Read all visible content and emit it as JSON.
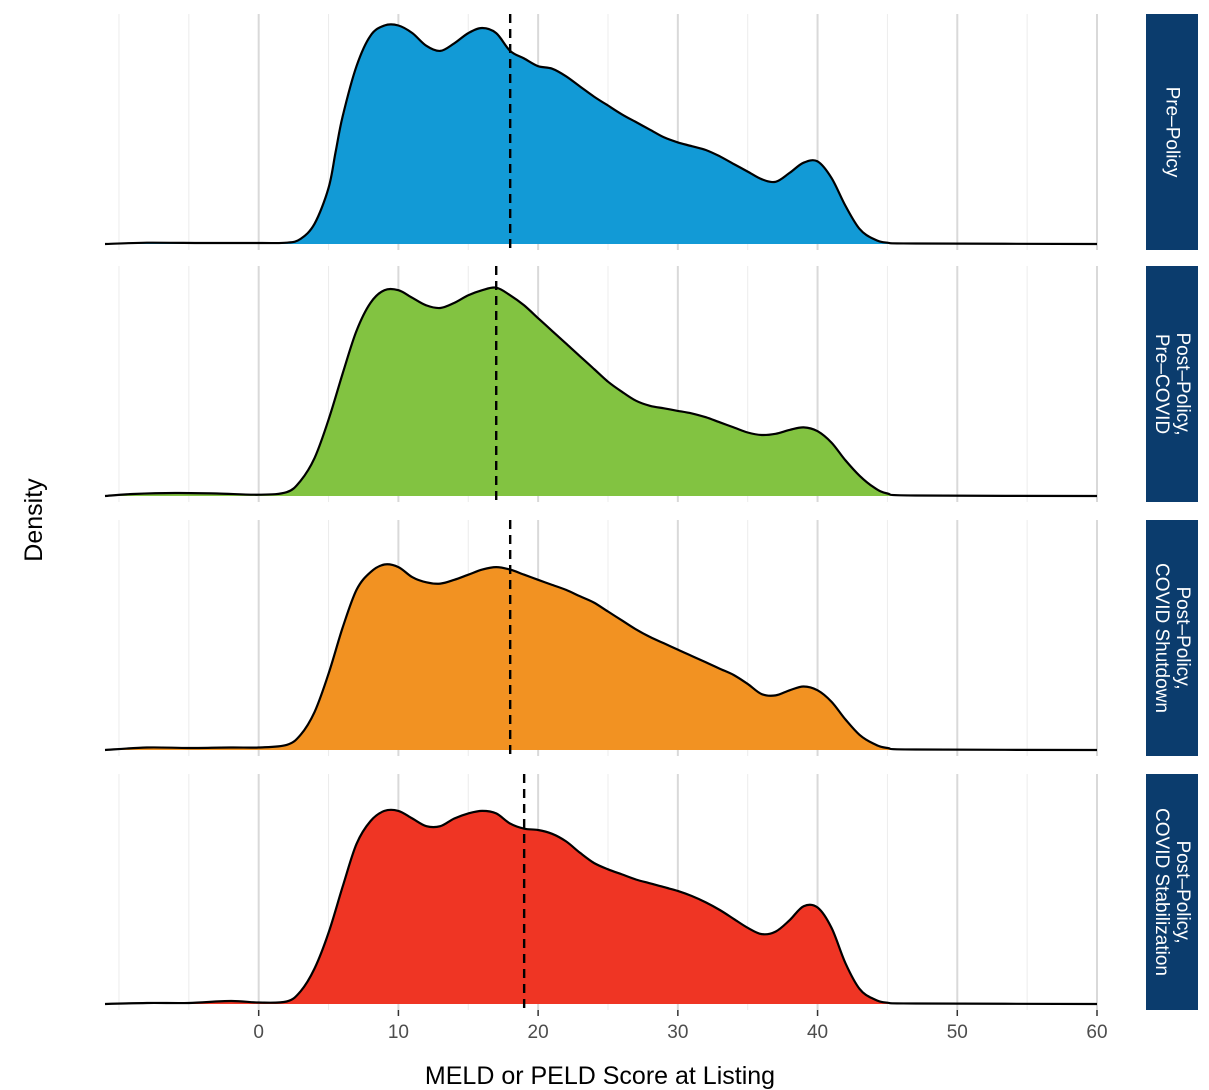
{
  "chart_data": {
    "type": "area",
    "xlabel": "MELD or PELD Score at Listing",
    "ylabel": "Density",
    "xlim": [
      -11,
      60
    ],
    "x_ticks": [
      0,
      10,
      20,
      30,
      40,
      50,
      60
    ],
    "x_tick_labels": [
      "0",
      "10",
      "20",
      "30",
      "40",
      "50",
      "60"
    ],
    "x_minor_ticks": [
      -10,
      -5,
      5,
      15,
      25,
      35,
      45,
      55
    ],
    "grid": true,
    "legend": "none",
    "strip_color": "#0b3c6d",
    "panels": [
      {
        "label": [
          "Pre–Policy"
        ],
        "color": "#129ad6",
        "mean_line": 18,
        "points": [
          [
            -11,
            0.0
          ],
          [
            -8,
            0.05
          ],
          [
            -4,
            0.04
          ],
          [
            0,
            0.04
          ],
          [
            2,
            0.05
          ],
          [
            3,
            0.2
          ],
          [
            4,
            0.8
          ],
          [
            5,
            2.2
          ],
          [
            5.5,
            3.6
          ],
          [
            6,
            5.0
          ],
          [
            7,
            7.0
          ],
          [
            8,
            8.2
          ],
          [
            9,
            8.6
          ],
          [
            10,
            8.6
          ],
          [
            11,
            8.3
          ],
          [
            12,
            7.8
          ],
          [
            13,
            7.6
          ],
          [
            14,
            7.9
          ],
          [
            15,
            8.3
          ],
          [
            16,
            8.5
          ],
          [
            17,
            8.3
          ],
          [
            18,
            7.6
          ],
          [
            19,
            7.3
          ],
          [
            20,
            7.0
          ],
          [
            21,
            6.9
          ],
          [
            22,
            6.6
          ],
          [
            23,
            6.2
          ],
          [
            24,
            5.8
          ],
          [
            25,
            5.45
          ],
          [
            26,
            5.1
          ],
          [
            27,
            4.8
          ],
          [
            28,
            4.5
          ],
          [
            29,
            4.2
          ],
          [
            30,
            4.0
          ],
          [
            31,
            3.85
          ],
          [
            32,
            3.7
          ],
          [
            33,
            3.45
          ],
          [
            34,
            3.15
          ],
          [
            35,
            2.85
          ],
          [
            36,
            2.55
          ],
          [
            37,
            2.45
          ],
          [
            38,
            2.8
          ],
          [
            39,
            3.2
          ],
          [
            40,
            3.25
          ],
          [
            41,
            2.6
          ],
          [
            42,
            1.5
          ],
          [
            43,
            0.6
          ],
          [
            44,
            0.2
          ],
          [
            45,
            0.05
          ],
          [
            47,
            0.02
          ],
          [
            60,
            0.0
          ]
        ]
      },
      {
        "label": [
          "Post–Policy,",
          "Pre–COVID"
        ],
        "color": "#82c341",
        "mean_line": 17,
        "points": [
          [
            -11,
            0.0
          ],
          [
            -9,
            0.08
          ],
          [
            -6,
            0.12
          ],
          [
            -3,
            0.1
          ],
          [
            0,
            0.05
          ],
          [
            2,
            0.15
          ],
          [
            3,
            0.6
          ],
          [
            4,
            1.5
          ],
          [
            5,
            3.0
          ],
          [
            6,
            4.8
          ],
          [
            7,
            6.5
          ],
          [
            8,
            7.6
          ],
          [
            9,
            8.1
          ],
          [
            10,
            8.1
          ],
          [
            11,
            7.8
          ],
          [
            12,
            7.5
          ],
          [
            13,
            7.4
          ],
          [
            14,
            7.6
          ],
          [
            15,
            7.9
          ],
          [
            16,
            8.1
          ],
          [
            17,
            8.2
          ],
          [
            18,
            7.9
          ],
          [
            19,
            7.5
          ],
          [
            20,
            7.0
          ],
          [
            21,
            6.5
          ],
          [
            22,
            6.0
          ],
          [
            23,
            5.5
          ],
          [
            24,
            5.0
          ],
          [
            25,
            4.5
          ],
          [
            26,
            4.1
          ],
          [
            27,
            3.75
          ],
          [
            28,
            3.55
          ],
          [
            29,
            3.45
          ],
          [
            30,
            3.35
          ],
          [
            31,
            3.25
          ],
          [
            32,
            3.1
          ],
          [
            33,
            2.9
          ],
          [
            34,
            2.7
          ],
          [
            35,
            2.5
          ],
          [
            36,
            2.4
          ],
          [
            37,
            2.45
          ],
          [
            38,
            2.6
          ],
          [
            39,
            2.7
          ],
          [
            40,
            2.55
          ],
          [
            41,
            2.1
          ],
          [
            42,
            1.4
          ],
          [
            43,
            0.8
          ],
          [
            44,
            0.35
          ],
          [
            45,
            0.1
          ],
          [
            47,
            0.02
          ],
          [
            60,
            0.0
          ]
        ]
      },
      {
        "label": [
          "Post–Policy,",
          "COVID Shutdown"
        ],
        "color": "#f29222",
        "mean_line": 18,
        "points": [
          [
            -11,
            0.0
          ],
          [
            -8,
            0.1
          ],
          [
            -5,
            0.08
          ],
          [
            -2,
            0.1
          ],
          [
            0,
            0.1
          ],
          [
            2,
            0.2
          ],
          [
            3,
            0.6
          ],
          [
            4,
            1.5
          ],
          [
            5,
            3.0
          ],
          [
            6,
            4.8
          ],
          [
            7,
            6.3
          ],
          [
            8,
            7.0
          ],
          [
            9,
            7.3
          ],
          [
            10,
            7.2
          ],
          [
            11,
            6.8
          ],
          [
            12,
            6.6
          ],
          [
            13,
            6.55
          ],
          [
            14,
            6.7
          ],
          [
            15,
            6.9
          ],
          [
            16,
            7.1
          ],
          [
            17,
            7.2
          ],
          [
            18,
            7.1
          ],
          [
            19,
            6.9
          ],
          [
            20,
            6.7
          ],
          [
            21,
            6.5
          ],
          [
            22,
            6.3
          ],
          [
            23,
            6.05
          ],
          [
            24,
            5.8
          ],
          [
            25,
            5.45
          ],
          [
            26,
            5.1
          ],
          [
            27,
            4.75
          ],
          [
            28,
            4.45
          ],
          [
            29,
            4.2
          ],
          [
            30,
            3.95
          ],
          [
            31,
            3.7
          ],
          [
            32,
            3.45
          ],
          [
            33,
            3.2
          ],
          [
            34,
            2.95
          ],
          [
            35,
            2.6
          ],
          [
            36,
            2.2
          ],
          [
            37,
            2.15
          ],
          [
            38,
            2.35
          ],
          [
            39,
            2.5
          ],
          [
            40,
            2.35
          ],
          [
            41,
            1.9
          ],
          [
            42,
            1.2
          ],
          [
            43,
            0.6
          ],
          [
            44,
            0.25
          ],
          [
            45,
            0.08
          ],
          [
            47,
            0.02
          ],
          [
            60,
            0.0
          ]
        ]
      },
      {
        "label": [
          "Post–Policy,",
          "COVID Stabilization"
        ],
        "color": "#ef3524",
        "mean_line": 19,
        "points": [
          [
            -11,
            0.0
          ],
          [
            -8,
            0.04
          ],
          [
            -5,
            0.04
          ],
          [
            -2,
            0.12
          ],
          [
            0,
            0.06
          ],
          [
            2,
            0.1
          ],
          [
            3,
            0.5
          ],
          [
            4,
            1.4
          ],
          [
            5,
            2.8
          ],
          [
            6,
            4.6
          ],
          [
            7,
            6.3
          ],
          [
            8,
            7.2
          ],
          [
            9,
            7.6
          ],
          [
            10,
            7.6
          ],
          [
            11,
            7.3
          ],
          [
            12,
            7.0
          ],
          [
            13,
            7.0
          ],
          [
            14,
            7.3
          ],
          [
            15,
            7.5
          ],
          [
            16,
            7.6
          ],
          [
            17,
            7.5
          ],
          [
            18,
            7.1
          ],
          [
            19,
            6.9
          ],
          [
            20,
            6.85
          ],
          [
            21,
            6.7
          ],
          [
            22,
            6.4
          ],
          [
            23,
            5.95
          ],
          [
            24,
            5.55
          ],
          [
            25,
            5.3
          ],
          [
            26,
            5.1
          ],
          [
            27,
            4.9
          ],
          [
            28,
            4.75
          ],
          [
            29,
            4.6
          ],
          [
            30,
            4.45
          ],
          [
            31,
            4.25
          ],
          [
            32,
            4.0
          ],
          [
            33,
            3.7
          ],
          [
            34,
            3.35
          ],
          [
            35,
            3.0
          ],
          [
            36,
            2.75
          ],
          [
            37,
            2.85
          ],
          [
            38,
            3.3
          ],
          [
            39,
            3.85
          ],
          [
            40,
            3.8
          ],
          [
            41,
            3.0
          ],
          [
            42,
            1.6
          ],
          [
            43,
            0.6
          ],
          [
            44,
            0.2
          ],
          [
            45,
            0.05
          ],
          [
            47,
            0.02
          ],
          [
            60,
            0.0
          ]
        ]
      }
    ]
  }
}
